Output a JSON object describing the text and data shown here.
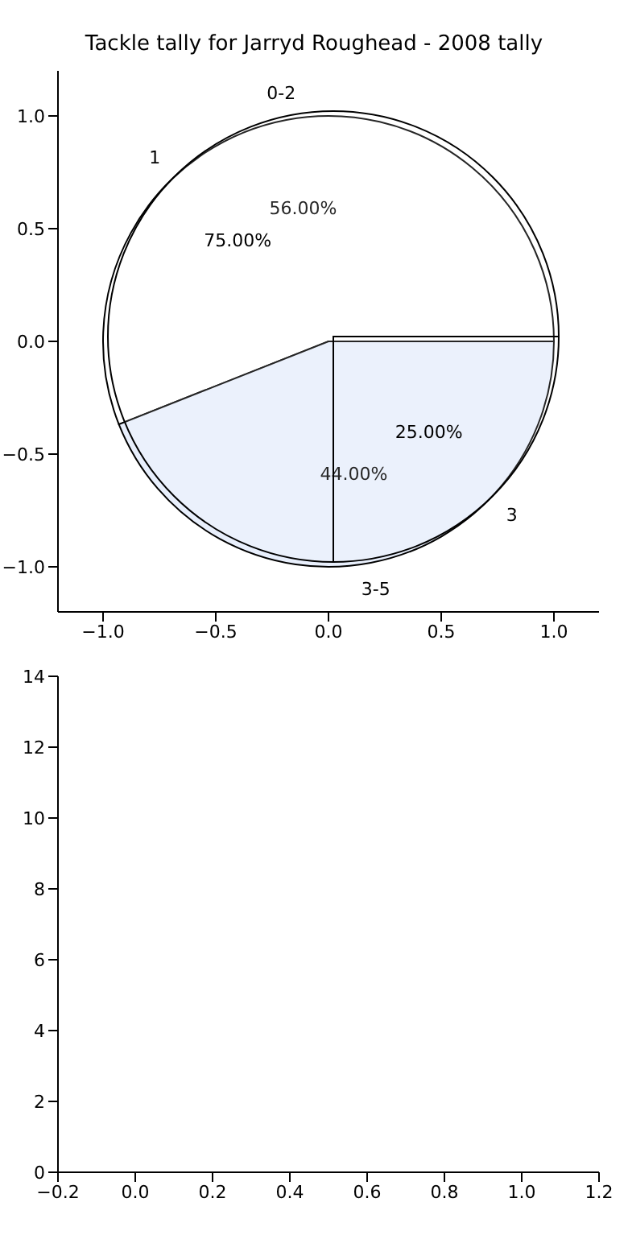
{
  "chart_data": [
    {
      "type": "scatter",
      "title": "Tackle tally for Jarryd Roughead - 2008 tally",
      "xlim": [
        -1.2,
        1.2
      ],
      "ylim": [
        -1.2,
        1.2
      ],
      "xticks": [
        {
          "value": -1,
          "label": "−1.0"
        },
        {
          "value": -0.5,
          "label": "−0.5"
        },
        {
          "value": 0,
          "label": "0.0"
        },
        {
          "value": 0.5,
          "label": "0.5"
        },
        {
          "value": 1,
          "label": "1.0"
        }
      ],
      "yticks": [
        {
          "value": -1,
          "label": "−1.0"
        },
        {
          "value": -0.5,
          "label": "−0.5"
        },
        {
          "value": 0,
          "label": "0.0"
        },
        {
          "value": 0.5,
          "label": "0.5"
        },
        {
          "value": 1,
          "label": "1.0"
        }
      ]
    },
    {
      "type": "pie",
      "categories": [
        "0-2",
        "3-5"
      ],
      "values": [
        56,
        44
      ],
      "colors": [
        "#ffffff",
        "#e8effc"
      ],
      "value_labels": [
        "56.00%",
        "44.00%"
      ]
    },
    {
      "type": "pie",
      "categories": [
        "1",
        "3"
      ],
      "values": [
        75,
        25
      ],
      "colors": [
        "#ffffff",
        "#ffffff"
      ],
      "value_labels": [
        "75.00%",
        "25.00%"
      ]
    },
    {
      "type": "scatter",
      "xlim": [
        -0.2,
        1.2
      ],
      "ylim": [
        0,
        14
      ],
      "xticks": [
        {
          "value": -0.2,
          "label": "−0.2"
        },
        {
          "value": 0,
          "label": "0.0"
        },
        0.2,
        0.4,
        0.6,
        0.8,
        {
          "value": 1,
          "label": "1.0"
        },
        1.2
      ],
      "yticks": [
        0,
        2,
        4,
        6,
        8,
        10,
        12,
        14
      ]
    }
  ]
}
